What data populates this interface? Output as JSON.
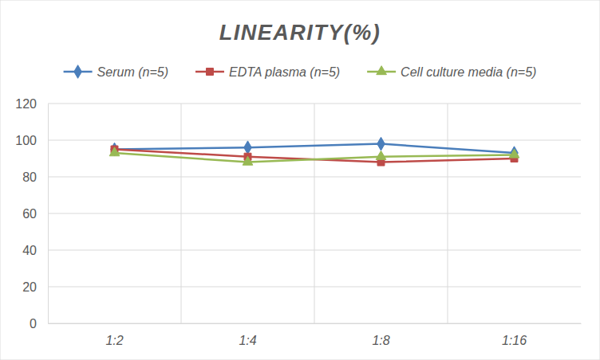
{
  "chart_data": {
    "type": "line",
    "title": "LINEARITY(%)",
    "categories": [
      "1:2",
      "1:4",
      "1:8",
      "1:16"
    ],
    "series": [
      {
        "name": "Serum (n=5)",
        "color": "#4a7ebb",
        "marker": "diamond",
        "values": [
          95,
          96,
          98,
          93
        ]
      },
      {
        "name": "EDTA plasma (n=5)",
        "color": "#be4b48",
        "marker": "square",
        "values": [
          95,
          91,
          88,
          90
        ]
      },
      {
        "name": "Cell culture media (n=5)",
        "color": "#98b954",
        "marker": "triangle",
        "values": [
          93,
          88,
          91,
          92
        ]
      }
    ],
    "ylim": [
      0,
      120
    ],
    "yticks": [
      0,
      20,
      40,
      60,
      80,
      100,
      120
    ],
    "grid": true,
    "legend": "top"
  }
}
